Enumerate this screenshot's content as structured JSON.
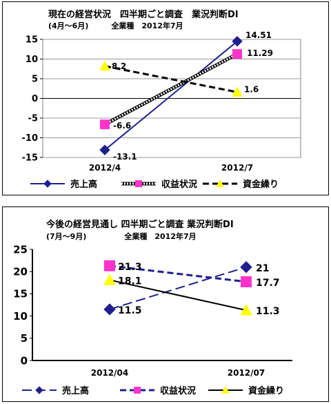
{
  "chart_data": [
    {
      "type": "line",
      "title": "現在の経営状況　四半期ごと調査　業況判断DI",
      "subtitle": "(4月～6月)　　　全業種　2012年7月",
      "categories": [
        "2012/4",
        "2012/7"
      ],
      "yticks": [
        "15",
        "10",
        "5",
        "0",
        "-5",
        "-10",
        "-15"
      ],
      "ylim": [
        -15,
        15
      ],
      "grid": true,
      "legend_position": "bottom",
      "series": [
        {
          "name": "売上高",
          "values": [
            -13.1,
            14.51
          ],
          "labels": [
            "-13.1",
            "14.51"
          ],
          "color": "#1f1f8f",
          "marker": "diamond",
          "line": "solid"
        },
        {
          "name": "収益状況",
          "values": [
            -6.6,
            11.29
          ],
          "labels": [
            "-6.6",
            "11.29"
          ],
          "color": "#ff33cc",
          "marker": "square",
          "line": "hatched"
        },
        {
          "name": "資金繰り",
          "values": [
            8.2,
            1.6
          ],
          "labels": [
            "8.2",
            "1.6"
          ],
          "color": "#ffff00",
          "marker": "triangle",
          "line": "dashed"
        }
      ]
    },
    {
      "type": "line",
      "title": "今後の経営見通し 四半期ごと調査 業況判断DI",
      "subtitle": "(7月～9月)　　　　　全業種　2012年7月",
      "categories": [
        "2012/04",
        "2012/07"
      ],
      "yticks": [
        "25",
        "20",
        "15",
        "10",
        "5",
        "0"
      ],
      "ylim": [
        0,
        25
      ],
      "grid": false,
      "legend_position": "bottom",
      "series": [
        {
          "name": "売上高",
          "values": [
            11.5,
            21
          ],
          "labels": [
            "11.5",
            "21"
          ],
          "color": "#1f1f8f",
          "marker": "diamond",
          "line": "longdash"
        },
        {
          "name": "収益状況",
          "values": [
            21.3,
            17.7
          ],
          "labels": [
            "21.3",
            "17.7"
          ],
          "color": "#ff33cc",
          "marker": "square",
          "line": "dashed"
        },
        {
          "name": "資金繰り",
          "values": [
            18.1,
            11.3
          ],
          "labels": [
            "18.1",
            "11.3"
          ],
          "color": "#ffff00",
          "marker": "triangle",
          "line": "solid"
        }
      ]
    }
  ]
}
